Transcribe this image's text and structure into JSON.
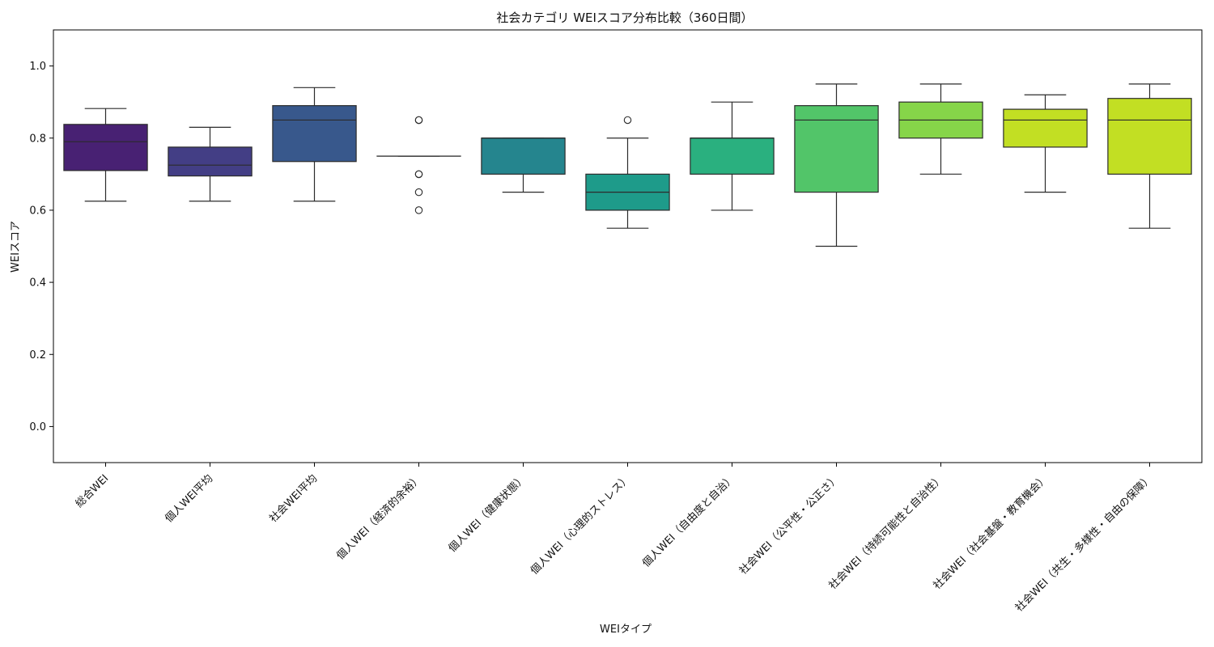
{
  "chart_data": {
    "type": "box",
    "title": "社会カテゴリ WEIスコア分布比較（360日間）",
    "xlabel": "WEIタイプ",
    "ylabel": "WEIスコア",
    "ylim": [
      -0.1,
      1.1
    ],
    "yticks": [
      "0.0",
      "0.2",
      "0.4",
      "0.6",
      "0.8",
      "1.0"
    ],
    "ytick_values": [
      0.0,
      0.2,
      0.4,
      0.6,
      0.8,
      1.0
    ],
    "grid": false,
    "categories": [
      "総合WEI",
      "個人WEI平均",
      "社会WEI平均",
      "個人WEI（経済的余裕）",
      "個人WEI（健康状態）",
      "個人WEI（心理的ストレス）",
      "個人WEI（自由度と自治）",
      "社会WEI（公平性・公正さ）",
      "社会WEI（持続可能性と自治性）",
      "社会WEI（社会基盤・教育機会）",
      "社会WEI（共生・多様性・自由の保障）"
    ],
    "boxes": [
      {
        "whislo": 0.625,
        "q1": 0.71,
        "med": 0.79,
        "q3": 0.838,
        "whishi": 0.882,
        "fliers": [],
        "color": "#482173"
      },
      {
        "whislo": 0.625,
        "q1": 0.695,
        "med": 0.725,
        "q3": 0.775,
        "whishi": 0.83,
        "fliers": [],
        "color": "#433E85"
      },
      {
        "whislo": 0.625,
        "q1": 0.735,
        "med": 0.85,
        "q3": 0.89,
        "whishi": 0.94,
        "fliers": [],
        "color": "#38588C"
      },
      {
        "whislo": 0.75,
        "q1": 0.75,
        "med": 0.75,
        "q3": 0.75,
        "whishi": 0.75,
        "fliers": [
          0.85,
          0.85,
          0.7,
          0.7,
          0.65,
          0.6
        ],
        "color": "#2D708E"
      },
      {
        "whislo": 0.65,
        "q1": 0.7,
        "med": 0.8,
        "q3": 0.8,
        "whishi": 0.8,
        "fliers": [],
        "color": "#25858E"
      },
      {
        "whislo": 0.55,
        "q1": 0.6,
        "med": 0.65,
        "q3": 0.7,
        "whishi": 0.8,
        "fliers": [
          0.85
        ],
        "color": "#1E9B8A"
      },
      {
        "whislo": 0.6,
        "q1": 0.7,
        "med": 0.8,
        "q3": 0.8,
        "whishi": 0.9,
        "fliers": [],
        "color": "#2AB07F"
      },
      {
        "whislo": 0.5,
        "q1": 0.65,
        "med": 0.85,
        "q3": 0.89,
        "whishi": 0.95,
        "fliers": [],
        "color": "#52C569"
      },
      {
        "whislo": 0.7,
        "q1": 0.8,
        "med": 0.85,
        "q3": 0.9,
        "whishi": 0.95,
        "fliers": [],
        "color": "#86D549"
      },
      {
        "whislo": 0.65,
        "q1": 0.775,
        "med": 0.85,
        "q3": 0.88,
        "whishi": 0.92,
        "fliers": [],
        "color": "#C2DF23"
      },
      {
        "whislo": 0.55,
        "q1": 0.7,
        "med": 0.85,
        "q3": 0.91,
        "whishi": 0.95,
        "fliers": [],
        "color": "#C2DF23"
      }
    ]
  }
}
